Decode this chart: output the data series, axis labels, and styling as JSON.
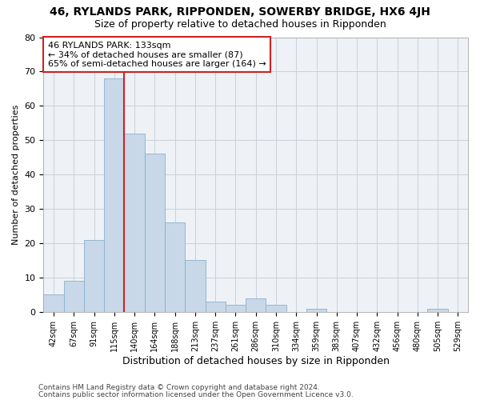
{
  "title": "46, RYLANDS PARK, RIPPONDEN, SOWERBY BRIDGE, HX6 4JH",
  "subtitle": "Size of property relative to detached houses in Ripponden",
  "xlabel": "Distribution of detached houses by size in Ripponden",
  "ylabel": "Number of detached properties",
  "bar_color": "#c8d8e8",
  "bar_edge_color": "#8ab0cc",
  "grid_color": "#c8d0d8",
  "background_color": "#eef2f7",
  "categories": [
    "42sqm",
    "67sqm",
    "91sqm",
    "115sqm",
    "140sqm",
    "164sqm",
    "188sqm",
    "213sqm",
    "237sqm",
    "261sqm",
    "286sqm",
    "310sqm",
    "334sqm",
    "359sqm",
    "383sqm",
    "407sqm",
    "432sqm",
    "456sqm",
    "480sqm",
    "505sqm",
    "529sqm"
  ],
  "values": [
    5,
    9,
    21,
    68,
    52,
    46,
    26,
    15,
    3,
    2,
    4,
    2,
    0,
    1,
    0,
    0,
    0,
    0,
    0,
    1,
    0
  ],
  "ylim": [
    0,
    80
  ],
  "yticks": [
    0,
    10,
    20,
    30,
    40,
    50,
    60,
    70,
    80
  ],
  "property_line_index": 3.5,
  "property_label": "46 RYLANDS PARK: 133sqm",
  "annotation_line1": "← 34% of detached houses are smaller (87)",
  "annotation_line2": "65% of semi-detached houses are larger (164) →",
  "annotation_box_color": "#ffffff",
  "annotation_box_edge_color": "#cc2222",
  "line_color": "#cc2222",
  "footer_line1": "Contains HM Land Registry data © Crown copyright and database right 2024.",
  "footer_line2": "Contains public sector information licensed under the Open Government Licence v3.0."
}
